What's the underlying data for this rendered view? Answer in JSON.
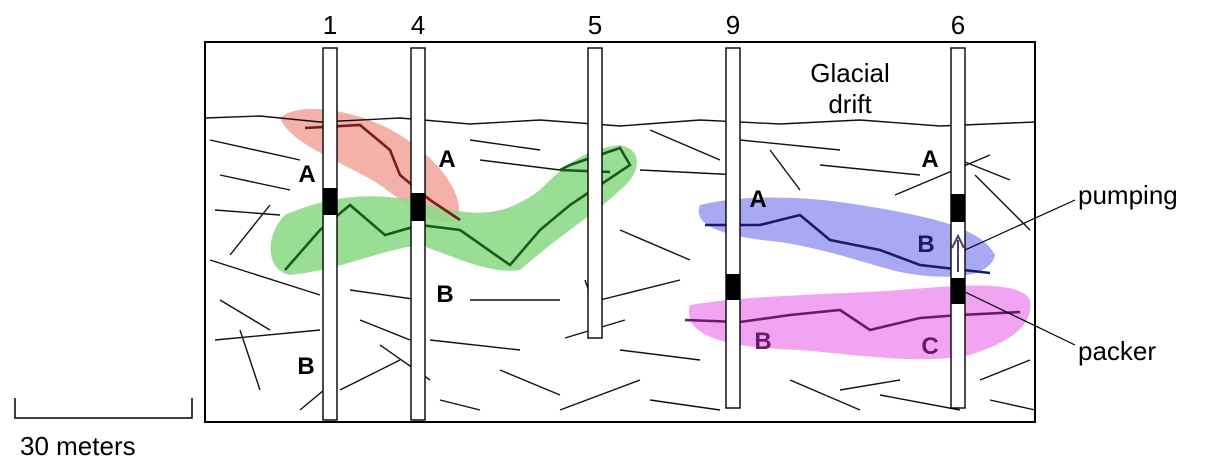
{
  "wells": [
    {
      "label": "1"
    },
    {
      "label": "4"
    },
    {
      "label": "5"
    },
    {
      "label": "9"
    },
    {
      "label": "6"
    }
  ],
  "region_label": [
    "Glacial",
    "drift"
  ],
  "zone_labels": [
    "A",
    "A",
    "B",
    "B",
    "A",
    "A",
    "B",
    "B",
    "C"
  ],
  "callouts": {
    "pumping": "pumping",
    "packer": "packer"
  },
  "scale_label": "30 meters"
}
